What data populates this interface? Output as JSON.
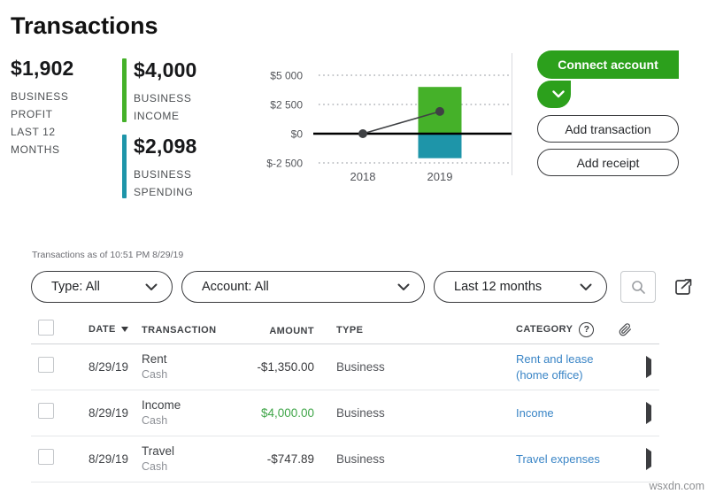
{
  "page_title": "Transactions",
  "colors": {
    "qb_green": "#2ca01c",
    "bar_green": "#45b129",
    "bar_teal": "#1e95a9",
    "link_blue": "#3a85c6",
    "amount_positive": "#3fa548"
  },
  "stats": {
    "profit": {
      "value": "$1,902",
      "label": "BUSINESS\nPROFIT\nLAST 12\nMONTHS"
    },
    "income": {
      "value": "$4,000",
      "label": "BUSINESS\nINCOME"
    },
    "spending": {
      "value": "$2,098",
      "label": "BUSINESS\nSPENDING"
    }
  },
  "chart_data": {
    "type": "combo",
    "categories": [
      "2018",
      "2019"
    ],
    "series": [
      {
        "name": "Business income",
        "kind": "bar",
        "values": [
          null,
          4000
        ],
        "color": "#45b129"
      },
      {
        "name": "Business spending",
        "kind": "bar",
        "values": [
          null,
          -2098
        ],
        "color": "#1e95a9"
      },
      {
        "name": "Business profit",
        "kind": "line",
        "values": [
          0,
          1902
        ],
        "color": "#3f4144"
      }
    ],
    "yticks": [
      {
        "label": "$5 000",
        "value": 5000
      },
      {
        "label": "$2 500",
        "value": 2500
      },
      {
        "label": "$0",
        "value": 0
      },
      {
        "label": "$-2 500",
        "value": -2500
      }
    ],
    "ylim": [
      -2500,
      5000
    ],
    "grid": "dotted horizontal lines, solid black zero line",
    "legend": "none"
  },
  "actions": {
    "connect_account": "Connect account",
    "add_transaction": "Add transaction",
    "add_receipt": "Add receipt"
  },
  "status_line": "Transactions as of 10:51 PM 8/29/19",
  "filters": {
    "type": "Type: All",
    "account": "Account: All",
    "period": "Last 12 months"
  },
  "table": {
    "headers": {
      "date": "DATE",
      "transaction": "TRANSACTION",
      "amount": "AMOUNT",
      "type": "TYPE",
      "category": "CATEGORY"
    },
    "rows": [
      {
        "date": "8/29/19",
        "name": "Rent",
        "method": "Cash",
        "amount": "-$1,350.00",
        "type": "Business",
        "category": "Rent and lease (home office)"
      },
      {
        "date": "8/29/19",
        "name": "Income",
        "method": "Cash",
        "amount": "$4,000.00",
        "type": "Business",
        "category": "Income"
      },
      {
        "date": "8/29/19",
        "name": "Travel",
        "method": "Cash",
        "amount": "-$747.89",
        "type": "Business",
        "category": "Travel expenses"
      }
    ]
  },
  "watermark": "wsxdn.com"
}
